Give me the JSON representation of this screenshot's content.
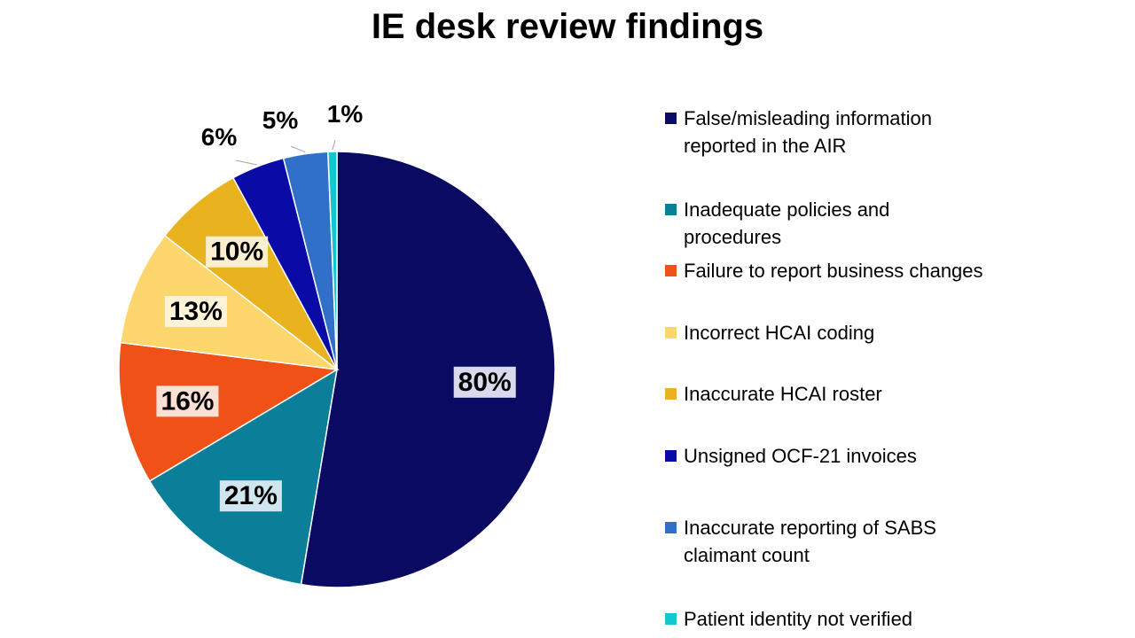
{
  "chart_data": {
    "type": "pie",
    "title": "IE desk review findings",
    "slices": [
      {
        "label": "False/misleading information reported in the AIR",
        "value": 80,
        "display": "80%",
        "color": "#0a0a62"
      },
      {
        "label": "Inadequate policies and procedures",
        "value": 21,
        "display": "21%",
        "color": "#0b7f9a"
      },
      {
        "label": "Failure to report business changes",
        "value": 16,
        "display": "16%",
        "color": "#f05116"
      },
      {
        "label": "Incorrect HCAI coding",
        "value": 13,
        "display": "13%",
        "color": "#fdd66e"
      },
      {
        "label": "Inaccurate HCAI roster",
        "value": 10,
        "display": "10%",
        "color": "#e8b31f"
      },
      {
        "label": "Unsigned OCF-21 invoices",
        "value": 6,
        "display": "6%",
        "color": "#0a0aa6"
      },
      {
        "label": "Inaccurate reporting of SABS claimant count",
        "value": 5,
        "display": "5%",
        "color": "#3170c8"
      },
      {
        "label": "Patient identity not verified",
        "value": 1,
        "display": "1%",
        "color": "#12c8cf"
      }
    ],
    "legend_position": "right"
  }
}
